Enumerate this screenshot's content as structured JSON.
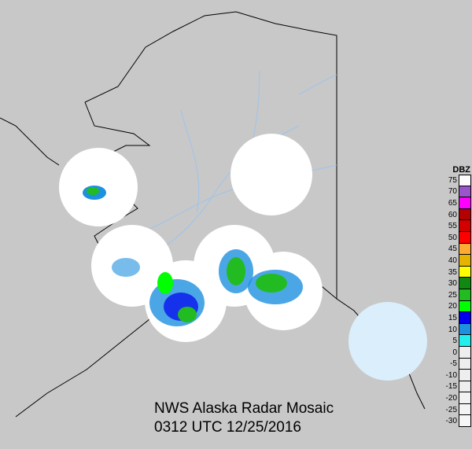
{
  "title": "NWS Alaska Radar Mosaic",
  "timestamp": "0312 UTC 12/25/2016",
  "colors": {
    "background": "#c8c8c8",
    "land": "#cccccc",
    "coverage": "#ffffff",
    "rivers": "#9ec3ec",
    "border": "#000000"
  },
  "legend": {
    "unit": "DBZ",
    "entries": [
      {
        "label": "75",
        "color": "#ffffff"
      },
      {
        "label": "70",
        "color": "#9955c9"
      },
      {
        "label": "65",
        "color": "#ff00ff"
      },
      {
        "label": "60",
        "color": "#b30000"
      },
      {
        "label": "55",
        "color": "#d40000"
      },
      {
        "label": "50",
        "color": "#ff0000"
      },
      {
        "label": "45",
        "color": "#ffaa33"
      },
      {
        "label": "40",
        "color": "#e6b400"
      },
      {
        "label": "35",
        "color": "#ffff00"
      },
      {
        "label": "30",
        "color": "#118811"
      },
      {
        "label": "25",
        "color": "#22bb22"
      },
      {
        "label": "20",
        "color": "#00ff00"
      },
      {
        "label": "15",
        "color": "#0000ee"
      },
      {
        "label": "10",
        "color": "#1e90e0"
      },
      {
        "label": "5",
        "color": "#22eeee"
      },
      {
        "label": "0",
        "color": "#eeeeee"
      },
      {
        "label": "-5",
        "color": "#eeeeee"
      },
      {
        "label": "-10",
        "color": "#eeeeee"
      },
      {
        "label": "-15",
        "color": "#eeeeee"
      },
      {
        "label": "-20",
        "color": "#f2f2f2"
      },
      {
        "label": "-25",
        "color": "#f4f4f4"
      },
      {
        "label": "-30",
        "color": "#f6f6f6"
      }
    ]
  }
}
